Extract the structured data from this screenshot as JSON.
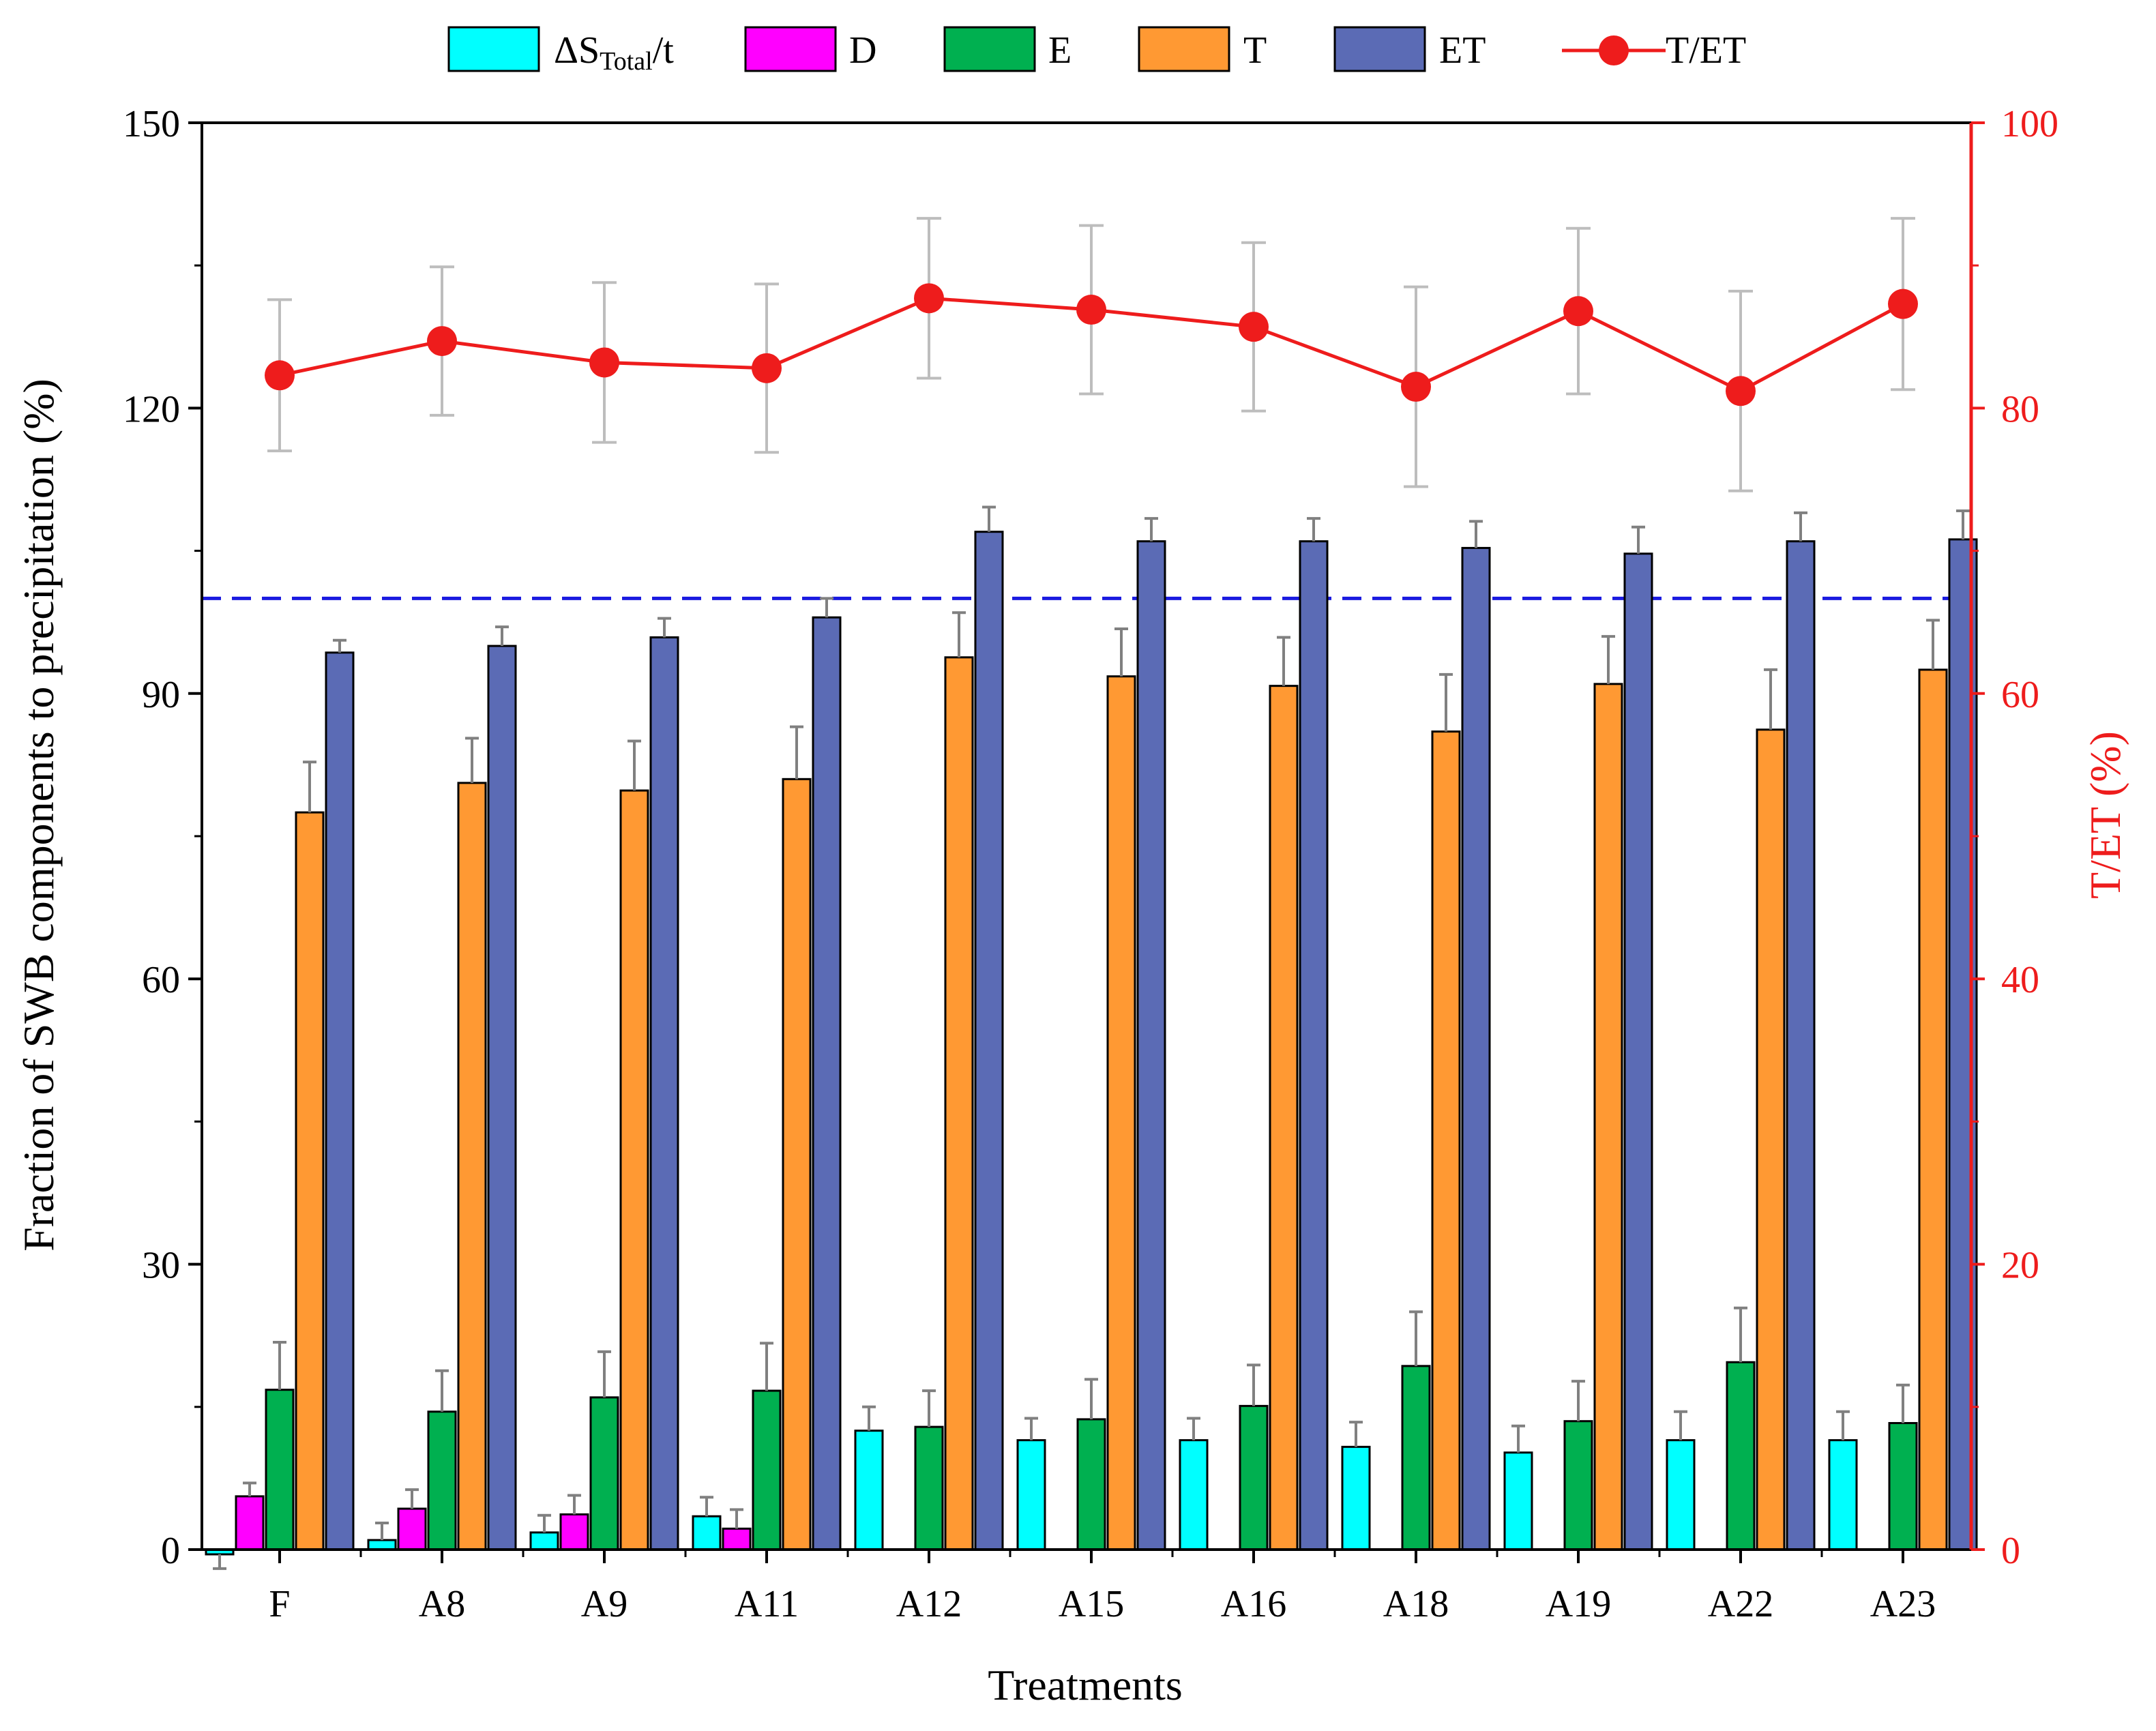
{
  "chart_data": {
    "type": "bar",
    "title": "",
    "xlabel": "Treatments",
    "ylabel": "Fraction of SWB components to precipitation (%)",
    "y2label": "T/ET (%)",
    "ylim": [
      0,
      150
    ],
    "y2lim": [
      0,
      100
    ],
    "yticks": [
      "0",
      "30",
      "60",
      "90",
      "120",
      "150"
    ],
    "y2ticks": [
      "0",
      "20",
      "40",
      "60",
      "80",
      "100"
    ],
    "reference_line": {
      "value": 100,
      "axis": "left",
      "style": "dashed",
      "color": "#1a1ae0"
    },
    "categories": [
      "F",
      "A8",
      "A9",
      "A11",
      "A12",
      "A15",
      "A16",
      "A18",
      "A19",
      "A22",
      "A23"
    ],
    "series": [
      {
        "name": "ΔS_Total/t",
        "legend_main": "ΔS",
        "legend_sub": "Total",
        "legend_tail": "/t",
        "color": "#00ffff",
        "values": [
          -0.5,
          1.0,
          1.8,
          3.5,
          12.5,
          11.5,
          11.5,
          10.8,
          10.2,
          11.5,
          11.5
        ],
        "errors": [
          1.5,
          1.8,
          1.8,
          2.0,
          2.5,
          2.3,
          2.3,
          2.6,
          2.8,
          3.0,
          3.0
        ]
      },
      {
        "name": "D",
        "color": "#ff00ff",
        "values": [
          5.6,
          4.3,
          3.7,
          2.2,
          0,
          0,
          0,
          0,
          0,
          0,
          0
        ],
        "errors": [
          1.4,
          2.0,
          2.0,
          2.0,
          0,
          0,
          0,
          0,
          0,
          0,
          0
        ]
      },
      {
        "name": "E",
        "color": "#00b050",
        "values": [
          16.8,
          14.5,
          16.0,
          16.7,
          12.9,
          13.7,
          15.1,
          19.3,
          13.5,
          19.7,
          13.3
        ],
        "errors": [
          5.0,
          4.3,
          4.8,
          5.0,
          3.8,
          4.2,
          4.3,
          5.7,
          4.2,
          5.7,
          4.0
        ]
      },
      {
        "name": "T",
        "color": "#ff9933",
        "values": [
          77.5,
          80.6,
          79.8,
          81.0,
          93.8,
          91.8,
          90.8,
          86.0,
          91.0,
          86.2,
          92.5
        ],
        "errors": [
          5.3,
          4.7,
          5.2,
          5.5,
          4.7,
          5.0,
          5.1,
          6.0,
          5.0,
          6.3,
          5.2
        ]
      },
      {
        "name": "ET",
        "color": "#5b6bb5",
        "values": [
          94.3,
          95.0,
          95.9,
          98.0,
          107.0,
          106.0,
          106.0,
          105.3,
          104.7,
          106.0,
          106.2
        ],
        "errors": [
          1.3,
          2.0,
          2.0,
          2.0,
          2.6,
          2.4,
          2.4,
          2.8,
          2.8,
          3.0,
          3.0
        ]
      }
    ],
    "line_series": {
      "name": "T/ET",
      "axis": "right",
      "color": "#ee1c1c",
      "values": [
        82.3,
        84.7,
        83.2,
        82.8,
        87.7,
        86.9,
        85.7,
        81.5,
        86.8,
        81.2,
        87.3
      ],
      "errors": [
        5.3,
        5.2,
        5.6,
        5.9,
        5.6,
        5.9,
        5.9,
        7.0,
        5.8,
        7.0,
        6.0
      ]
    },
    "legend": {
      "position": "top",
      "entries": [
        "ΔS_Total/t",
        "D",
        "E",
        "T",
        "ET",
        "T/ET"
      ]
    }
  }
}
